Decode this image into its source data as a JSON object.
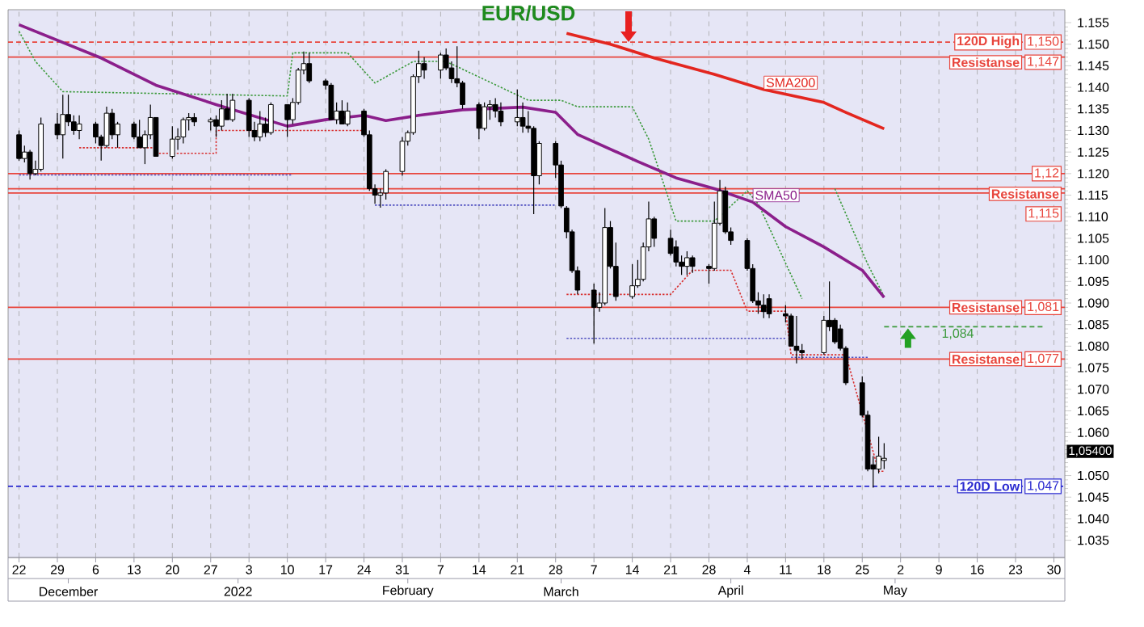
{
  "chart_data": {
    "type": "candlestick",
    "title": "EUR/USD",
    "x": [
      "2021-11-22",
      "2021-11-23",
      "2021-11-24",
      "2021-11-25",
      "2021-11-26",
      "2021-11-29",
      "2021-11-30",
      "2021-12-01",
      "2021-12-02",
      "2021-12-03",
      "2021-12-06",
      "2021-12-07",
      "2021-12-08",
      "2021-12-09",
      "2021-12-10",
      "2021-12-13",
      "2021-12-14",
      "2021-12-15",
      "2021-12-16",
      "2021-12-17",
      "2021-12-20",
      "2021-12-21",
      "2021-12-22",
      "2021-12-23",
      "2021-12-24",
      "2021-12-27",
      "2021-12-28",
      "2021-12-29",
      "2021-12-30",
      "2021-12-31",
      "2022-01-03",
      "2022-01-04",
      "2022-01-05",
      "2022-01-06",
      "2022-01-07",
      "2022-01-10",
      "2022-01-11",
      "2022-01-12",
      "2022-01-13",
      "2022-01-14",
      "2022-01-17",
      "2022-01-18",
      "2022-01-19",
      "2022-01-20",
      "2022-01-21",
      "2022-01-24",
      "2022-01-25",
      "2022-01-26",
      "2022-01-27",
      "2022-01-28",
      "2022-01-31",
      "2022-02-01",
      "2022-02-02",
      "2022-02-03",
      "2022-02-04",
      "2022-02-07",
      "2022-02-08",
      "2022-02-09",
      "2022-02-10",
      "2022-02-11",
      "2022-02-14",
      "2022-02-15",
      "2022-02-16",
      "2022-02-17",
      "2022-02-18",
      "2022-02-21",
      "2022-02-22",
      "2022-02-23",
      "2022-02-24",
      "2022-02-25",
      "2022-02-28",
      "2022-03-01",
      "2022-03-02",
      "2022-03-03",
      "2022-03-04",
      "2022-03-07",
      "2022-03-08",
      "2022-03-09",
      "2022-03-10",
      "2022-03-11",
      "2022-03-14",
      "2022-03-15",
      "2022-03-16",
      "2022-03-17",
      "2022-03-18",
      "2022-03-21",
      "2022-03-22",
      "2022-03-23",
      "2022-03-24",
      "2022-03-25",
      "2022-03-28",
      "2022-03-29",
      "2022-03-30",
      "2022-03-31",
      "2022-04-01",
      "2022-04-04",
      "2022-04-05",
      "2022-04-06",
      "2022-04-07",
      "2022-04-08",
      "2022-04-11",
      "2022-04-12",
      "2022-04-13",
      "2022-04-14",
      "2022-04-18",
      "2022-04-19",
      "2022-04-20",
      "2022-04-21",
      "2022-04-22",
      "2022-04-25",
      "2022-04-26",
      "2022-04-27",
      "2022-04-28",
      "2022-04-29"
    ],
    "ohlc": [
      [
        1.129,
        1.13,
        1.123,
        1.1235
      ],
      [
        1.1235,
        1.1265,
        1.1226,
        1.125
      ],
      [
        1.125,
        1.1255,
        1.1186,
        1.12
      ],
      [
        1.12,
        1.123,
        1.1196,
        1.121
      ],
      [
        1.121,
        1.133,
        1.1205,
        1.1315
      ],
      [
        1.1315,
        1.134,
        1.128,
        1.129
      ],
      [
        1.129,
        1.1383,
        1.1235,
        1.1337
      ],
      [
        1.1337,
        1.1383,
        1.131,
        1.132
      ],
      [
        1.132,
        1.1335,
        1.129,
        1.13
      ],
      [
        1.13,
        1.1335,
        1.128,
        1.1315
      ],
      [
        1.1315,
        1.132,
        1.127,
        1.1285
      ],
      [
        1.1285,
        1.129,
        1.123,
        1.1265
      ],
      [
        1.1265,
        1.1355,
        1.126,
        1.134
      ],
      [
        1.134,
        1.135,
        1.128,
        1.129
      ],
      [
        1.129,
        1.132,
        1.126,
        1.1315
      ],
      [
        1.1315,
        1.132,
        1.128,
        1.1285
      ],
      [
        1.1285,
        1.1325,
        1.126,
        1.126
      ],
      [
        1.126,
        1.13,
        1.1222,
        1.129
      ],
      [
        1.129,
        1.136,
        1.128,
        1.133
      ],
      [
        1.133,
        1.133,
        1.124,
        1.124
      ],
      [
        1.124,
        1.131,
        1.1235,
        1.128
      ],
      [
        1.128,
        1.1305,
        1.1255,
        1.1285
      ],
      [
        1.1285,
        1.133,
        1.127,
        1.1325
      ],
      [
        1.1325,
        1.134,
        1.13,
        1.133
      ],
      [
        1.133,
        1.134,
        1.131,
        1.132
      ],
      [
        1.132,
        1.133,
        1.13,
        1.1325
      ],
      [
        1.1325,
        1.1335,
        1.1285,
        1.131
      ],
      [
        1.131,
        1.137,
        1.13,
        1.135
      ],
      [
        1.135,
        1.1385,
        1.1325,
        1.1325
      ],
      [
        1.1325,
        1.1385,
        1.132,
        1.137
      ],
      [
        1.137,
        1.1375,
        1.1285,
        1.13
      ],
      [
        1.13,
        1.132,
        1.1275,
        1.1285
      ],
      [
        1.1285,
        1.1345,
        1.1275,
        1.1315
      ],
      [
        1.1315,
        1.133,
        1.1285,
        1.1295
      ],
      [
        1.1295,
        1.1365,
        1.129,
        1.136
      ],
      [
        1.136,
        1.136,
        1.1285,
        1.1325
      ],
      [
        1.1325,
        1.1375,
        1.1315,
        1.1365
      ],
      [
        1.1365,
        1.1445,
        1.136,
        1.144
      ],
      [
        1.144,
        1.1483,
        1.143,
        1.1455
      ],
      [
        1.1455,
        1.148,
        1.141,
        1.1415
      ],
      [
        1.1415,
        1.142,
        1.1395,
        1.1405
      ],
      [
        1.1405,
        1.141,
        1.1325,
        1.1325
      ],
      [
        1.1325,
        1.1365,
        1.1315,
        1.1345
      ],
      [
        1.1345,
        1.137,
        1.1315,
        1.1315
      ],
      [
        1.1315,
        1.1365,
        1.131,
        1.1345
      ],
      [
        1.1345,
        1.135,
        1.1285,
        1.129
      ],
      [
        1.129,
        1.13,
        1.116,
        1.1165
      ],
      [
        1.1165,
        1.1175,
        1.113,
        1.115
      ],
      [
        1.115,
        1.1165,
        1.1121,
        1.1155
      ],
      [
        1.1155,
        1.121,
        1.114,
        1.1205
      ],
      [
        1.1205,
        1.1285,
        1.1195,
        1.1275
      ],
      [
        1.1275,
        1.13,
        1.1265,
        1.1295
      ],
      [
        1.1295,
        1.143,
        1.129,
        1.1425
      ],
      [
        1.1425,
        1.1485,
        1.141,
        1.1455
      ],
      [
        1.1455,
        1.147,
        1.142,
        1.144
      ],
      [
        1.144,
        1.148,
        1.142,
        1.1475
      ],
      [
        1.1475,
        1.149,
        1.144,
        1.1445
      ],
      [
        1.1445,
        1.146,
        1.141,
        1.142
      ],
      [
        1.142,
        1.1495,
        1.14,
        1.141
      ],
      [
        1.141,
        1.1415,
        1.135,
        1.136
      ],
      [
        1.136,
        1.1365,
        1.128,
        1.1305
      ],
      [
        1.1305,
        1.1365,
        1.13,
        1.1355
      ],
      [
        1.1355,
        1.137,
        1.1325,
        1.136
      ],
      [
        1.136,
        1.1375,
        1.133,
        1.1345
      ],
      [
        1.1345,
        1.1365,
        1.131,
        1.132
      ],
      [
        1.132,
        1.1395,
        1.131,
        1.133
      ],
      [
        1.133,
        1.1365,
        1.1295,
        1.131
      ],
      [
        1.131,
        1.1345,
        1.1295,
        1.1305
      ],
      [
        1.1305,
        1.131,
        1.1106,
        1.1195
      ],
      [
        1.1195,
        1.1275,
        1.1175,
        1.127
      ],
      [
        1.127,
        1.1275,
        1.119,
        1.122
      ],
      [
        1.122,
        1.123,
        1.112,
        1.1125
      ],
      [
        1.112,
        1.1125,
        1.105,
        1.1065
      ],
      [
        1.1065,
        1.107,
        1.097,
        1.0975
      ],
      [
        1.0975,
        1.0985,
        1.092,
        1.093
      ],
      [
        1.093,
        1.0945,
        1.0806,
        1.089
      ],
      [
        1.089,
        1.0925,
        1.088,
        1.09
      ],
      [
        1.09,
        1.112,
        1.0895,
        1.1075
      ],
      [
        1.1075,
        1.109,
        1.098,
        1.0985
      ],
      [
        1.0985,
        1.104,
        1.0905,
        1.0915
      ],
      [
        1.0915,
        1.099,
        1.091,
        1.094
      ],
      [
        1.094,
        1.1,
        1.0935,
        1.0955
      ],
      [
        1.0955,
        1.104,
        1.095,
        1.103
      ],
      [
        1.103,
        1.1135,
        1.102,
        1.1095
      ],
      [
        1.1095,
        1.11,
        1.103,
        1.105
      ],
      [
        1.105,
        1.107,
        1.101,
        1.1015
      ],
      [
        1.103,
        1.1045,
        1.0985,
        1.0995
      ],
      [
        1.0995,
        1.101,
        1.0965,
        1.0985
      ],
      [
        1.0985,
        1.102,
        1.0965,
        1.1005
      ],
      [
        1.1005,
        1.101,
        1.097,
        1.0985
      ],
      [
        1.0985,
        1.099,
        1.0945,
        1.098
      ],
      [
        1.098,
        1.1135,
        1.0975,
        1.1085
      ],
      [
        1.1085,
        1.1185,
        1.108,
        1.116
      ],
      [
        1.116,
        1.117,
        1.106,
        1.1065
      ],
      [
        1.1065,
        1.1075,
        1.1035,
        1.1045
      ],
      [
        1.1045,
        1.105,
        1.0975,
        1.098
      ],
      [
        1.098,
        1.099,
        1.09,
        1.0905
      ],
      [
        1.0905,
        1.0925,
        1.0875,
        1.0895
      ],
      [
        1.0895,
        1.092,
        1.0865,
        1.088
      ],
      [
        1.091,
        1.092,
        1.0865,
        1.0875
      ],
      [
        1.0875,
        1.0895,
        1.0855,
        1.087
      ],
      [
        1.087,
        1.0875,
        1.08,
        1.08
      ],
      [
        1.08,
        1.087,
        1.076,
        1.079
      ],
      [
        1.079,
        1.0805,
        1.077,
        1.0785
      ],
      [
        1.0785,
        1.087,
        1.078,
        1.086
      ],
      [
        1.086,
        1.095,
        1.0835,
        1.0845
      ],
      [
        1.086,
        1.0865,
        1.0805,
        1.081
      ],
      [
        1.084,
        1.085,
        1.079,
        1.0795
      ],
      [
        1.0795,
        1.08,
        1.071,
        1.0715
      ],
      [
        1.0715,
        1.073,
        1.0635,
        1.064
      ],
      [
        1.064,
        1.065,
        1.051,
        1.0515
      ],
      [
        1.0525,
        1.0545,
        1.0472,
        1.0515
      ],
      [
        1.0515,
        1.059,
        1.0505,
        1.0545
      ],
      [
        1.0535,
        1.0575,
        1.0515,
        1.054
      ]
    ],
    "series": [
      {
        "type": "line",
        "color": "#3c9a3c",
        "line_style": "dotted",
        "x": [
          "2021-11-22",
          "2021-11-25",
          "2021-11-30",
          "2022-01-10",
          "2022-01-11",
          "2022-01-21",
          "2022-01-26",
          "2022-02-02",
          "2022-02-08",
          "2022-02-23",
          "2022-03-01",
          "2022-03-04",
          "2022-03-14",
          "2022-03-17",
          "2022-03-22",
          "2022-03-29",
          "2022-04-04",
          "2022-04-06",
          "2022-04-14"
        ],
        "values": [
          1.153,
          1.146,
          1.139,
          1.138,
          1.148,
          1.148,
          1.141,
          1.146,
          1.146,
          1.137,
          1.137,
          1.1355,
          1.1355,
          1.128,
          1.109,
          1.109,
          1.116,
          1.113,
          1.091
        ]
      },
      {
        "type": "line",
        "color": "#3c9a3c",
        "line_style": "dotted",
        "x": [
          "2022-04-20",
          "2022-04-26",
          "2022-04-29"
        ],
        "values": [
          1.1165,
          1.099,
          1.0915
        ]
      },
      {
        "type": "line",
        "color": "#d83030",
        "line_style": "dotted",
        "x": [
          "2021-12-03",
          "2021-12-17",
          "2021-12-17",
          "2021-12-28",
          "2021-12-28",
          "2022-01-24"
        ],
        "values": [
          1.126,
          1.126,
          1.1247,
          1.1247,
          1.13,
          1.13
        ]
      },
      {
        "type": "line",
        "color": "#d83030",
        "line_style": "dotted",
        "x": [
          "2022-03-02",
          "2022-03-21",
          "2022-03-25",
          "2022-04-01",
          "2022-04-04",
          "2022-04-11",
          "2022-04-12",
          "2022-04-22",
          "2022-04-28",
          "2022-04-29"
        ],
        "values": [
          1.092,
          1.092,
          1.0976,
          1.0976,
          1.0881,
          1.0881,
          1.078,
          1.078,
          1.051,
          1.051
        ]
      },
      {
        "type": "line",
        "color": "#5050c0",
        "line_style": "dotted",
        "x": [
          "2021-11-22",
          "2022-01-11"
        ],
        "values": [
          1.1197,
          1.1197
        ]
      },
      {
        "type": "line",
        "color": "#5050c0",
        "line_style": "dotted",
        "x": [
          "2022-01-26",
          "2022-02-28"
        ],
        "values": [
          1.1127,
          1.1127
        ]
      },
      {
        "type": "line",
        "color": "#5050c0",
        "line_style": "dotted",
        "x": [
          "2022-03-02",
          "2022-04-11"
        ],
        "values": [
          1.0818,
          1.0818
        ]
      },
      {
        "type": "line",
        "color": "#5050c0",
        "line_style": "dotted",
        "x": [
          "2022-04-12",
          "2022-04-26"
        ],
        "values": [
          1.0774,
          1.0774
        ]
      },
      {
        "type": "line",
        "name": "SMA200",
        "color": "#e3261f",
        "line_style": "solid",
        "x": [
          "2022-03-02",
          "2022-03-10",
          "2022-03-18",
          "2022-03-29",
          "2022-04-07",
          "2022-04-18",
          "2022-04-22",
          "2022-04-29"
        ],
        "values": [
          1.1525,
          1.15,
          1.1468,
          1.143,
          1.1395,
          1.1365,
          1.1342,
          1.1304
        ]
      },
      {
        "type": "line",
        "name": "SMA50",
        "color": "#8b1f8b",
        "line_style": "solid",
        "x": [
          "2021-11-22",
          "2021-12-07",
          "2021-12-17",
          "2021-12-28",
          "2022-01-10",
          "2022-01-17",
          "2022-01-24",
          "2022-01-28",
          "2022-02-03",
          "2022-02-11",
          "2022-02-22",
          "2022-02-28",
          "2022-03-04",
          "2022-03-15",
          "2022-03-22",
          "2022-03-29",
          "2022-04-05",
          "2022-04-11",
          "2022-04-18",
          "2022-04-25",
          "2022-04-29"
        ],
        "values": [
          1.1545,
          1.1468,
          1.1405,
          1.136,
          1.131,
          1.1325,
          1.1335,
          1.1323,
          1.1335,
          1.1348,
          1.1354,
          1.1342,
          1.1291,
          1.1228,
          1.119,
          1.1165,
          1.1134,
          1.1077,
          1.103,
          1.0976,
          1.0913
        ]
      },
      {
        "type": "line",
        "name": "1,084",
        "color": "#3c9a3c",
        "line_style": "dashed",
        "x": [
          "2022-04-29",
          "2022-05-28"
        ],
        "values": [
          1.0845,
          1.0845
        ]
      }
    ],
    "ref_lines": [
      {
        "axis": "y",
        "value": 1.1505,
        "label": "120D High",
        "color": "#e8453c",
        "line_style": "dashed"
      },
      {
        "axis": "y",
        "value": 1.147,
        "label": "Resistanse",
        "color": "#e8453c",
        "line_style": "solid"
      },
      {
        "axis": "y",
        "value": 1.12,
        "color": "#e8453c",
        "line_style": "solid"
      },
      {
        "axis": "y",
        "value": 1.1165,
        "label": "Resistanse",
        "color": "#e8453c",
        "line_style": "solid"
      },
      {
        "axis": "y",
        "value": 1.1155,
        "color": "#e8453c",
        "line_style": "solid"
      },
      {
        "axis": "y",
        "value": 1.089,
        "label": "Resistanse",
        "color": "#e8453c",
        "line_style": "solid"
      },
      {
        "axis": "y",
        "value": 1.077,
        "label": "Resistanse",
        "color": "#e8453c",
        "line_style": "solid"
      },
      {
        "axis": "y",
        "value": 1.0475,
        "label": "120D Low",
        "color": "#2b2bd0",
        "line_style": "dashed"
      }
    ],
    "annotations": [
      {
        "text": "1,150",
        "y": 1.1505
      },
      {
        "text": "1,147",
        "y": 1.147
      },
      {
        "text": "1,12",
        "y": 1.12
      },
      {
        "text": "1,115",
        "y": 1.1155
      },
      {
        "text": "1,081",
        "y": 1.089
      },
      {
        "text": "1,077",
        "y": 1.077
      },
      {
        "text": "1,047",
        "y": 1.0475
      },
      "1,05400"
    ],
    "xlim": [
      "2021-11-20",
      "2022-06-01"
    ],
    "xticks": [
      {
        "value": "2021-11-22",
        "label": "22"
      },
      {
        "value": "2021-11-29",
        "label": "29"
      },
      {
        "value": "2021-12-06",
        "label": "6"
      },
      {
        "value": "2021-12-13",
        "label": "13"
      },
      {
        "value": "2021-12-20",
        "label": "20"
      },
      {
        "value": "2021-12-27",
        "label": "27"
      },
      {
        "value": "2022-01-03",
        "label": "3"
      },
      {
        "value": "2022-01-10",
        "label": "10"
      },
      {
        "value": "2022-01-17",
        "label": "17"
      },
      {
        "value": "2022-01-24",
        "label": "24"
      },
      {
        "value": "2022-01-31",
        "label": "31"
      },
      {
        "value": "2022-02-07",
        "label": "7"
      },
      {
        "value": "2022-02-14",
        "label": "14"
      },
      {
        "value": "2022-02-21",
        "label": "21"
      },
      {
        "value": "2022-02-28",
        "label": "28"
      },
      {
        "value": "2022-03-07",
        "label": "7"
      },
      {
        "value": "2022-03-14",
        "label": "14"
      },
      {
        "value": "2022-03-21",
        "label": "21"
      },
      {
        "value": "2022-03-28",
        "label": "28"
      },
      {
        "value": "2022-04-04",
        "label": "4"
      },
      {
        "value": "2022-04-11",
        "label": "11"
      },
      {
        "value": "2022-04-18",
        "label": "18"
      },
      {
        "value": "2022-04-25",
        "label": "25"
      },
      {
        "value": "2022-05-02",
        "label": "2"
      },
      {
        "value": "2022-05-09",
        "label": "9"
      },
      {
        "value": "2022-05-16",
        "label": "16"
      },
      {
        "value": "2022-05-23",
        "label": "23"
      },
      {
        "value": "2022-05-30",
        "label": "30"
      }
    ],
    "x2lim": [
      "2021-11-20",
      "2022-06-01"
    ],
    "x2ticks": [
      {
        "value": "2021-12-01",
        "label": "December"
      },
      {
        "value": "2022-01-01",
        "label": "2022"
      },
      {
        "value": "2022-02-01",
        "label": "February"
      },
      {
        "value": "2022-03-01",
        "label": "March"
      },
      {
        "value": "2022-04-01",
        "label": "April"
      },
      {
        "value": "2022-05-01",
        "label": "May"
      }
    ],
    "ylim": [
      1.031,
      1.158
    ],
    "yticks": [
      {
        "value": 1.035,
        "label": "1.035"
      },
      {
        "value": 1.04,
        "label": "1.040"
      },
      {
        "value": 1.045,
        "label": "1.045"
      },
      {
        "value": 1.05,
        "label": "1.050"
      },
      {
        "value": 1.055,
        "label": null
      },
      {
        "value": 1.06,
        "label": "1.060"
      },
      {
        "value": 1.065,
        "label": "1.065"
      },
      {
        "value": 1.07,
        "label": "1.070"
      },
      {
        "value": 1.075,
        "label": "1.075"
      },
      {
        "value": 1.08,
        "label": "1.080"
      },
      {
        "value": 1.085,
        "label": "1.085"
      },
      {
        "value": 1.09,
        "label": "1.090"
      },
      {
        "value": 1.095,
        "label": "1.095"
      },
      {
        "value": 1.1,
        "label": "1.100"
      },
      {
        "value": 1.105,
        "label": "1.105"
      },
      {
        "value": 1.11,
        "label": "1.110"
      },
      {
        "value": 1.115,
        "label": "1.115"
      },
      {
        "value": 1.12,
        "label": "1.120"
      },
      {
        "value": 1.125,
        "label": "1.125"
      },
      {
        "value": 1.13,
        "label": "1.130"
      },
      {
        "value": 1.135,
        "label": "1.135"
      },
      {
        "value": 1.14,
        "label": "1.140"
      },
      {
        "value": 1.145,
        "label": "1.145"
      },
      {
        "value": 1.15,
        "label": "1.150"
      },
      {
        "value": 1.155,
        "label": "1.155"
      }
    ],
    "grid": "x"
  }
}
